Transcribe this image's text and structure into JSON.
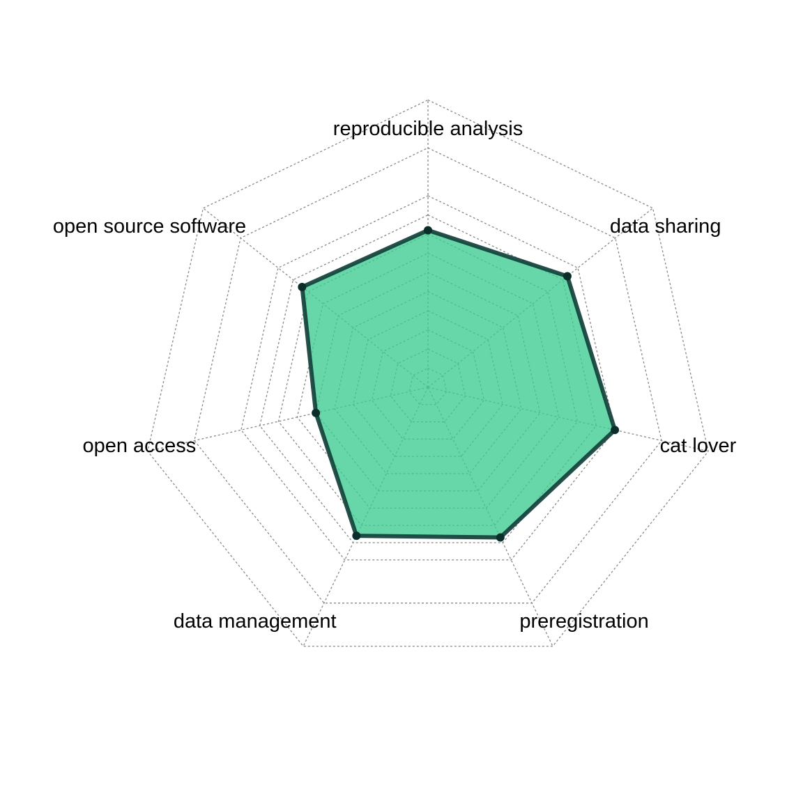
{
  "chart_data": {
    "type": "radar",
    "title": "",
    "axes": [
      "reproducible analysis",
      "data sharing",
      "cat lover",
      "preregistration",
      "data management",
      "open access",
      "open source software"
    ],
    "series": [
      {
        "values": [
          8.2,
          9.3,
          10.0,
          8.7,
          8.6,
          6.0,
          8.4
        ]
      }
    ],
    "range": [
      0,
      10
    ],
    "grid": true,
    "grid_levels": [
      1,
      2,
      3,
      4,
      5,
      6,
      7,
      8,
      9,
      10,
      12.5,
      15
    ],
    "grid_style": "dotted",
    "colors": {
      "fill": "#3ccb8f",
      "fill_opacity": 0.78,
      "line": "#12403a",
      "marker": "#0b2e2b",
      "grid": "#888888"
    }
  }
}
